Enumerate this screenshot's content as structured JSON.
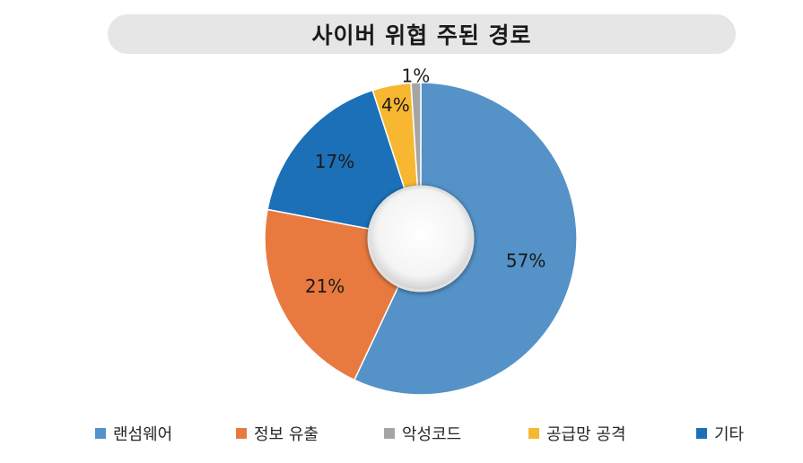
{
  "title": "사이버 위협 주된 경로",
  "chart_data": {
    "type": "pie",
    "variant": "donut",
    "title": "사이버 위협 주된 경로",
    "categories": [
      "랜섬웨어",
      "정보 유출",
      "악성코드",
      "공급망 공격",
      "기타"
    ],
    "values": [
      57,
      21,
      1,
      4,
      17
    ],
    "labels": [
      "57%",
      "21%",
      "1%",
      "4%",
      "17%"
    ],
    "colors": [
      "#5592c8",
      "#e87a40",
      "#a5a5a5",
      "#f7b731",
      "#1b70b8"
    ],
    "slice_order": [
      "랜섬웨어",
      "정보 유출",
      "기타",
      "공급망 공격",
      "악성코드"
    ],
    "legend_position": "bottom"
  }
}
